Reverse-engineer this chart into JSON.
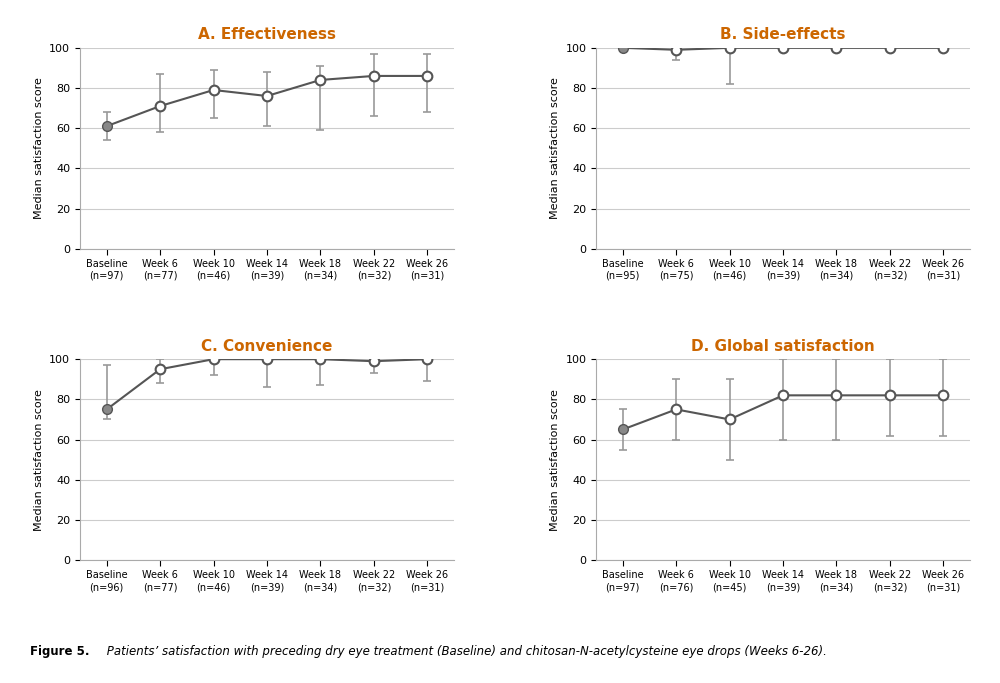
{
  "panels": [
    {
      "title": "A. Effectiveness",
      "x_labels": [
        "Baseline\n(n=97)",
        "Week 6\n(n=77)",
        "Week 10\n(n=46)",
        "Week 14\n(n=39)",
        "Week 18\n(n=34)",
        "Week 22\n(n=32)",
        "Week 26\n(n=31)"
      ],
      "y": [
        61,
        71,
        79,
        76,
        84,
        86,
        86
      ],
      "y_err_low": [
        7,
        13,
        14,
        15,
        25,
        20,
        18
      ],
      "y_err_high": [
        7,
        16,
        10,
        12,
        7,
        11,
        11
      ]
    },
    {
      "title": "B. Side-effects",
      "x_labels": [
        "Baseline\n(n=95)",
        "Week 6\n(n=75)",
        "Week 10\n(n=46)",
        "Week 14\n(n=39)",
        "Week 18\n(n=34)",
        "Week 22\n(n=32)",
        "Week 26\n(n=31)"
      ],
      "y": [
        100,
        99,
        100,
        100,
        100,
        100,
        100
      ],
      "y_err_low": [
        0,
        5,
        18,
        0,
        0,
        0,
        0
      ],
      "y_err_high": [
        0,
        1,
        0,
        0,
        0,
        0,
        0
      ]
    },
    {
      "title": "C. Convenience",
      "x_labels": [
        "Baseline\n(n=96)",
        "Week 6\n(n=77)",
        "Week 10\n(n=46)",
        "Week 14\n(n=39)",
        "Week 18\n(n=34)",
        "Week 22\n(n=32)",
        "Week 26\n(n=31)"
      ],
      "y": [
        75,
        95,
        100,
        100,
        100,
        99,
        100
      ],
      "y_err_low": [
        5,
        7,
        8,
        14,
        13,
        6,
        11
      ],
      "y_err_high": [
        22,
        5,
        0,
        0,
        0,
        1,
        0
      ]
    },
    {
      "title": "D. Global satisfaction",
      "x_labels": [
        "Baseline\n(n=97)",
        "Week 6\n(n=76)",
        "Week 10\n(n=45)",
        "Week 14\n(n=39)",
        "Week 18\n(n=34)",
        "Week 22\n(n=32)",
        "Week 26\n(n=31)"
      ],
      "y": [
        65,
        75,
        70,
        82,
        82,
        82,
        82
      ],
      "y_err_low": [
        10,
        15,
        20,
        22,
        22,
        20,
        20
      ],
      "y_err_high": [
        10,
        15,
        20,
        18,
        18,
        18,
        18
      ]
    }
  ],
  "ylabel": "Median satisfaction score",
  "ylim": [
    0,
    100
  ],
  "yticks": [
    0,
    20,
    40,
    60,
    80,
    100
  ],
  "figure_caption_bold": "Figure 5.",
  "figure_caption_italic": " Patients’ satisfaction with preceding dry eye treatment (Baseline) and chitosan-N-acetylcysteine eye drops (Weeks 6-26).",
  "line_color": "#555555",
  "error_color": "#999999",
  "title_color": "#CC6600",
  "grid_color": "#cccccc",
  "tick_label_color": "#0000CC",
  "marker_filled_color": "#888888",
  "marker_open_color": "white",
  "bg_color": "#ffffff"
}
